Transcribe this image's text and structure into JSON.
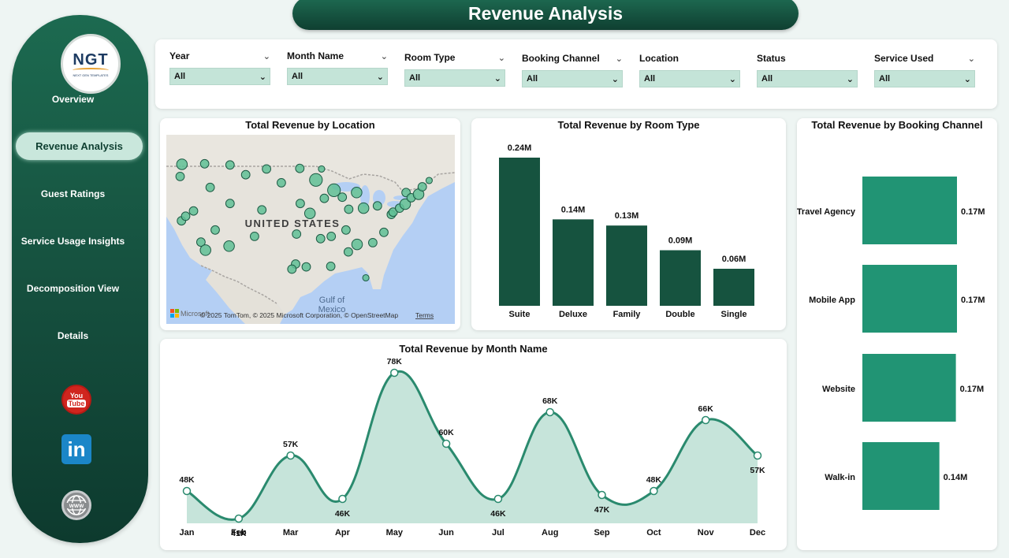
{
  "page": {
    "title": "Revenue Analysis"
  },
  "logo": {
    "text": "NGT",
    "subtext": "NEXT GEN TEMPLATES"
  },
  "nav": {
    "items": [
      {
        "label": "Overview"
      },
      {
        "label": "Revenue Analysis",
        "active": true
      },
      {
        "label": "Guest Ratings"
      },
      {
        "label": "Service Usage Insights"
      },
      {
        "label": "Decomposition View"
      },
      {
        "label": "Details"
      }
    ]
  },
  "social": {
    "youtube_top": "You",
    "youtube_bottom": "Tube",
    "linkedin": "in"
  },
  "filters": [
    {
      "label": "Year",
      "value": "All"
    },
    {
      "label": "Month Name",
      "value": "All"
    },
    {
      "label": "Room Type",
      "value": "All"
    },
    {
      "label": "Booking Channel",
      "value": "All"
    },
    {
      "label": "Location",
      "value": "All"
    },
    {
      "label": "Status",
      "value": "All"
    },
    {
      "label": "Service Used",
      "value": "All"
    }
  ],
  "map": {
    "title": "Total Revenue by Location",
    "country_label": "UNITED STATES",
    "gulf_label": "Gulf of\nMexico",
    "attribution": "© 2025 TomTom, © 2025 Microsoft Corporation, © OpenStreetMap",
    "terms": "Terms",
    "brand": "Microsoft"
  },
  "colors": {
    "primary": "#16533f",
    "accent": "#219474",
    "area": "#c6e4da",
    "line": "#2a8a6e"
  },
  "chart_data": [
    {
      "type": "bar",
      "title": "Total Revenue by Room Type",
      "categories": [
        "Suite",
        "Deluxe",
        "Family",
        "Double",
        "Single"
      ],
      "values": [
        0.24,
        0.14,
        0.13,
        0.09,
        0.06
      ],
      "data_labels": [
        "0.24M",
        "0.14M",
        "0.13M",
        "0.09M",
        "0.06M"
      ],
      "unit": "M"
    },
    {
      "type": "area",
      "title": "Total Revenue by Month Name",
      "categories": [
        "Jan",
        "Feb",
        "Mar",
        "Apr",
        "May",
        "Jun",
        "Jul",
        "Aug",
        "Sep",
        "Oct",
        "Nov",
        "Dec"
      ],
      "values": [
        48,
        41,
        57,
        46,
        78,
        60,
        46,
        68,
        47,
        48,
        66,
        57
      ],
      "data_labels": [
        "48K",
        "41K",
        "57K",
        "46K",
        "78K",
        "60K",
        "46K",
        "68K",
        "47K",
        "48K",
        "66K",
        "57K"
      ],
      "unit": "K"
    },
    {
      "type": "bar",
      "orientation": "horizontal",
      "title": "Total Revenue by Booking Channel",
      "categories": [
        "Travel Agency",
        "Mobile App",
        "Website",
        "Walk-in"
      ],
      "values": [
        0.172,
        0.172,
        0.17,
        0.14
      ],
      "data_labels": [
        "0.17M",
        "0.17M",
        "0.17M",
        "0.14M"
      ],
      "unit": "M"
    },
    {
      "type": "scatter",
      "title": "Total Revenue by Location",
      "note": "bubble map of US locations",
      "points": [
        {
          "lon": -122.3,
          "lat": 47.6,
          "v": 5
        },
        {
          "lon": -117.4,
          "lat": 47.7,
          "v": 4
        },
        {
          "lon": -111.9,
          "lat": 47.5,
          "v": 4
        },
        {
          "lon": -104.0,
          "lat": 46.8,
          "v": 4
        },
        {
          "lon": -96.8,
          "lat": 46.9,
          "v": 4
        },
        {
          "lon": -92.1,
          "lat": 46.8,
          "v": 3
        },
        {
          "lon": -122.7,
          "lat": 45.5,
          "v": 4
        },
        {
          "lon": -116.2,
          "lat": 43.6,
          "v": 4
        },
        {
          "lon": -108.5,
          "lat": 45.8,
          "v": 4
        },
        {
          "lon": -100.8,
          "lat": 44.4,
          "v": 4
        },
        {
          "lon": -93.3,
          "lat": 44.9,
          "v": 6
        },
        {
          "lon": -89.4,
          "lat": 43.1,
          "v": 6
        },
        {
          "lon": -84.5,
          "lat": 42.7,
          "v": 5
        },
        {
          "lon": -122.4,
          "lat": 37.8,
          "v": 4
        },
        {
          "lon": -121.5,
          "lat": 38.6,
          "v": 4
        },
        {
          "lon": -119.8,
          "lat": 39.5,
          "v": 4
        },
        {
          "lon": -111.9,
          "lat": 40.8,
          "v": 4
        },
        {
          "lon": -105.0,
          "lat": 39.7,
          "v": 4
        },
        {
          "lon": -96.7,
          "lat": 40.8,
          "v": 4
        },
        {
          "lon": -94.6,
          "lat": 39.1,
          "v": 5
        },
        {
          "lon": -91.5,
          "lat": 41.7,
          "v": 4
        },
        {
          "lon": -87.6,
          "lat": 41.9,
          "v": 4
        },
        {
          "lon": -86.2,
          "lat": 39.8,
          "v": 4
        },
        {
          "lon": -83.0,
          "lat": 40.0,
          "v": 5
        },
        {
          "lon": -80.0,
          "lat": 40.4,
          "v": 4
        },
        {
          "lon": -118.2,
          "lat": 34.1,
          "v": 4
        },
        {
          "lon": -117.2,
          "lat": 32.7,
          "v": 5
        },
        {
          "lon": -115.1,
          "lat": 36.2,
          "v": 4
        },
        {
          "lon": -112.1,
          "lat": 33.4,
          "v": 5
        },
        {
          "lon": -106.6,
          "lat": 35.1,
          "v": 4
        },
        {
          "lon": -97.5,
          "lat": 35.5,
          "v": 4
        },
        {
          "lon": -92.3,
          "lat": 34.7,
          "v": 4
        },
        {
          "lon": -90.0,
          "lat": 35.1,
          "v": 4
        },
        {
          "lon": -86.8,
          "lat": 36.2,
          "v": 4
        },
        {
          "lon": -84.4,
          "lat": 33.7,
          "v": 5
        },
        {
          "lon": -81.0,
          "lat": 34.0,
          "v": 4
        },
        {
          "lon": -78.6,
          "lat": 35.8,
          "v": 4
        },
        {
          "lon": -77.0,
          "lat": 38.9,
          "v": 4
        },
        {
          "lon": -76.6,
          "lat": 39.3,
          "v": 4
        },
        {
          "lon": -75.2,
          "lat": 40.0,
          "v": 4
        },
        {
          "lon": -74.0,
          "lat": 40.7,
          "v": 5
        },
        {
          "lon": -73.8,
          "lat": 42.7,
          "v": 4
        },
        {
          "lon": -72.7,
          "lat": 41.8,
          "v": 4
        },
        {
          "lon": -71.1,
          "lat": 42.4,
          "v": 5
        },
        {
          "lon": -70.3,
          "lat": 43.7,
          "v": 4
        },
        {
          "lon": -68.8,
          "lat": 44.8,
          "v": 3
        },
        {
          "lon": -97.7,
          "lat": 30.3,
          "v": 4
        },
        {
          "lon": -95.4,
          "lat": 29.8,
          "v": 4
        },
        {
          "lon": -90.1,
          "lat": 29.9,
          "v": 4
        },
        {
          "lon": -86.3,
          "lat": 32.4,
          "v": 4
        },
        {
          "lon": -82.5,
          "lat": 27.9,
          "v": 3
        },
        {
          "lon": -98.5,
          "lat": 29.4,
          "v": 4
        }
      ]
    }
  ]
}
